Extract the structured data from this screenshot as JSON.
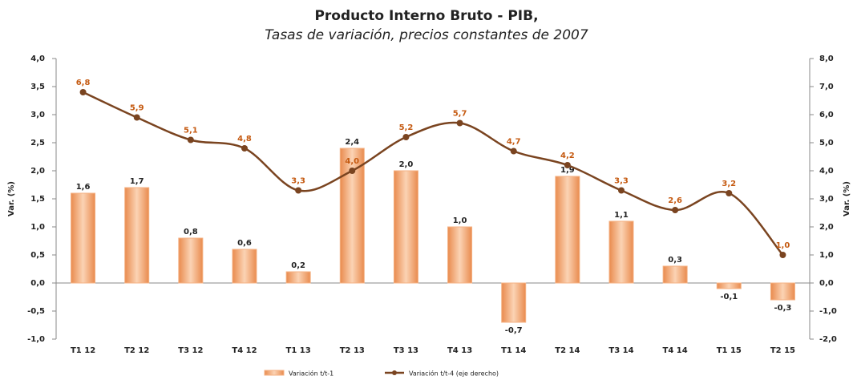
{
  "chart_data": {
    "type": "combo",
    "title": "Producto Interno Bruto - PIB,",
    "subtitle": "Tasas de variación, precios constantes de 2007",
    "ylabel": "Var. (%)",
    "y2label": "Var. (%)",
    "categories": [
      "T1 12",
      "T2 12",
      "T3 12",
      "T4 12",
      "T1 13",
      "T2 13",
      "T3 13",
      "T4 13",
      "T1 14",
      "T2 14",
      "T3 14",
      "T4 14",
      "T1 15",
      "T2 15"
    ],
    "series": [
      {
        "name": "Variación t/t-1",
        "type": "bar",
        "axis": "y",
        "color": "#f4b183",
        "values": [
          1.6,
          1.7,
          0.8,
          0.6,
          0.2,
          2.4,
          2.0,
          1.0,
          -0.7,
          1.9,
          1.1,
          0.3,
          -0.1,
          -0.3
        ],
        "value_labels": [
          "1,6",
          "1,7",
          "0,8",
          "0,6",
          "0,2",
          "2,4",
          "2,0",
          "1,0",
          "-0,7",
          "1,9",
          "1,1",
          "0,3",
          "-0,1",
          "-0,3"
        ]
      },
      {
        "name": "Variación t/t-4 (eje derecho)",
        "type": "line",
        "axis": "y2",
        "color": "#7a4420",
        "values": [
          6.8,
          5.9,
          5.1,
          4.8,
          3.3,
          4.0,
          5.2,
          5.7,
          4.7,
          4.2,
          3.3,
          2.6,
          3.2,
          1.0
        ],
        "value_labels": [
          "6,8",
          "5,9",
          "5,1",
          "4,8",
          "3,3",
          "4,0",
          "5,2",
          "5,7",
          "4,7",
          "4,2",
          "3,3",
          "2,6",
          "3,2",
          "1,0"
        ]
      }
    ],
    "ylim": [
      -1.0,
      4.0
    ],
    "yticks": [
      {
        "value": -1.0,
        "label": "-1,0"
      },
      {
        "value": -0.5,
        "label": "-0,5"
      },
      {
        "value": 0,
        "label": "0,0"
      },
      {
        "value": 0.5,
        "label": "0,5"
      },
      {
        "value": 1.0,
        "label": "1,0"
      },
      {
        "value": 1.5,
        "label": "1,5"
      },
      {
        "value": 2.0,
        "label": "2,0"
      },
      {
        "value": 2.5,
        "label": "2,5"
      },
      {
        "value": 3.0,
        "label": "3,0"
      },
      {
        "value": 3.5,
        "label": "3,5"
      },
      {
        "value": 4.0,
        "label": "4,0"
      }
    ],
    "y2lim": [
      -2.0,
      8.0
    ],
    "y2ticks": [
      {
        "value": -2.0,
        "label": "-2,0"
      },
      {
        "value": -1.0,
        "label": "-1,0"
      },
      {
        "value": 0,
        "label": "0,0"
      },
      {
        "value": 1.0,
        "label": "1,0"
      },
      {
        "value": 2.0,
        "label": "2,0"
      },
      {
        "value": 3.0,
        "label": "3,0"
      },
      {
        "value": 4.0,
        "label": "4,0"
      },
      {
        "value": 5.0,
        "label": "5,0"
      },
      {
        "value": 6.0,
        "label": "6,0"
      },
      {
        "value": 7.0,
        "label": "7,0"
      },
      {
        "value": 8.0,
        "label": "8,0"
      }
    ],
    "legend": "bottom"
  }
}
